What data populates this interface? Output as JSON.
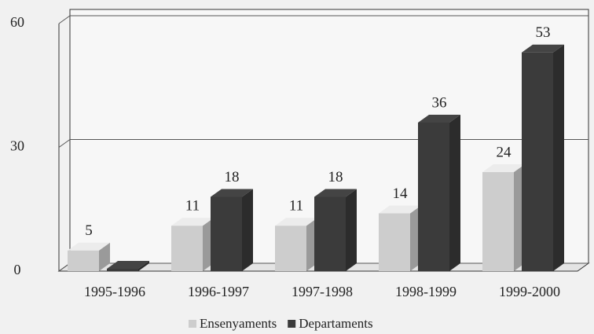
{
  "chart_data": {
    "type": "bar3d",
    "categories": [
      "1995-1996",
      "1996-1997",
      "1997-1998",
      "1998-1999",
      "1999-2000"
    ],
    "series": [
      {
        "name": "Ensenyaments",
        "color": "#cdcdcd",
        "values": [
          5,
          11,
          11,
          14,
          24
        ]
      },
      {
        "name": "Departaments",
        "color": "#3b3b3b",
        "values": [
          0,
          18,
          18,
          36,
          53
        ],
        "value_labels": [
          null,
          "18",
          "18",
          "36",
          "53"
        ]
      }
    ],
    "ylim": [
      0,
      60
    ],
    "yticks": [
      0,
      30,
      60
    ],
    "legend": "bottom"
  }
}
